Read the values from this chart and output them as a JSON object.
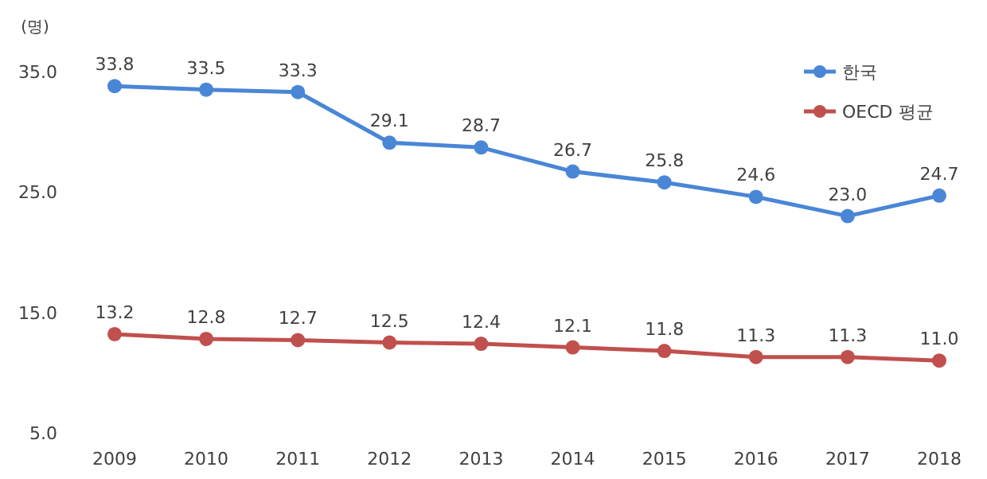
{
  "chart_data": {
    "type": "line",
    "ylabel": "(명)",
    "categories": [
      "2009",
      "2010",
      "2011",
      "2012",
      "2013",
      "2014",
      "2015",
      "2016",
      "2017",
      "2018"
    ],
    "series": [
      {
        "name": "한국",
        "color": "#4a86d6",
        "values": [
          33.8,
          33.5,
          33.3,
          29.1,
          28.7,
          26.7,
          25.8,
          24.6,
          23.0,
          24.7
        ],
        "value_labels": [
          "33.8",
          "33.5",
          "33.3",
          "29.1",
          "28.7",
          "26.7",
          "25.8",
          "24.6",
          "23.0",
          "24.7"
        ]
      },
      {
        "name": "OECD 평균",
        "color": "#c0504d",
        "values": [
          13.2,
          12.8,
          12.7,
          12.5,
          12.4,
          12.1,
          11.8,
          11.3,
          11.3,
          11.0
        ],
        "value_labels": [
          "13.2",
          "12.8",
          "12.7",
          "12.5",
          "12.4",
          "12.1",
          "11.8",
          "11.3",
          "11.3",
          "11.0"
        ]
      }
    ],
    "ylim": [
      5,
      35
    ],
    "yticks": [
      {
        "value": 5,
        "label": "5.0"
      },
      {
        "value": 15,
        "label": "15.0"
      },
      {
        "value": 25,
        "label": "25.0"
      },
      {
        "value": 35,
        "label": "35.0"
      }
    ],
    "marker": "circle",
    "legend": "top right"
  }
}
